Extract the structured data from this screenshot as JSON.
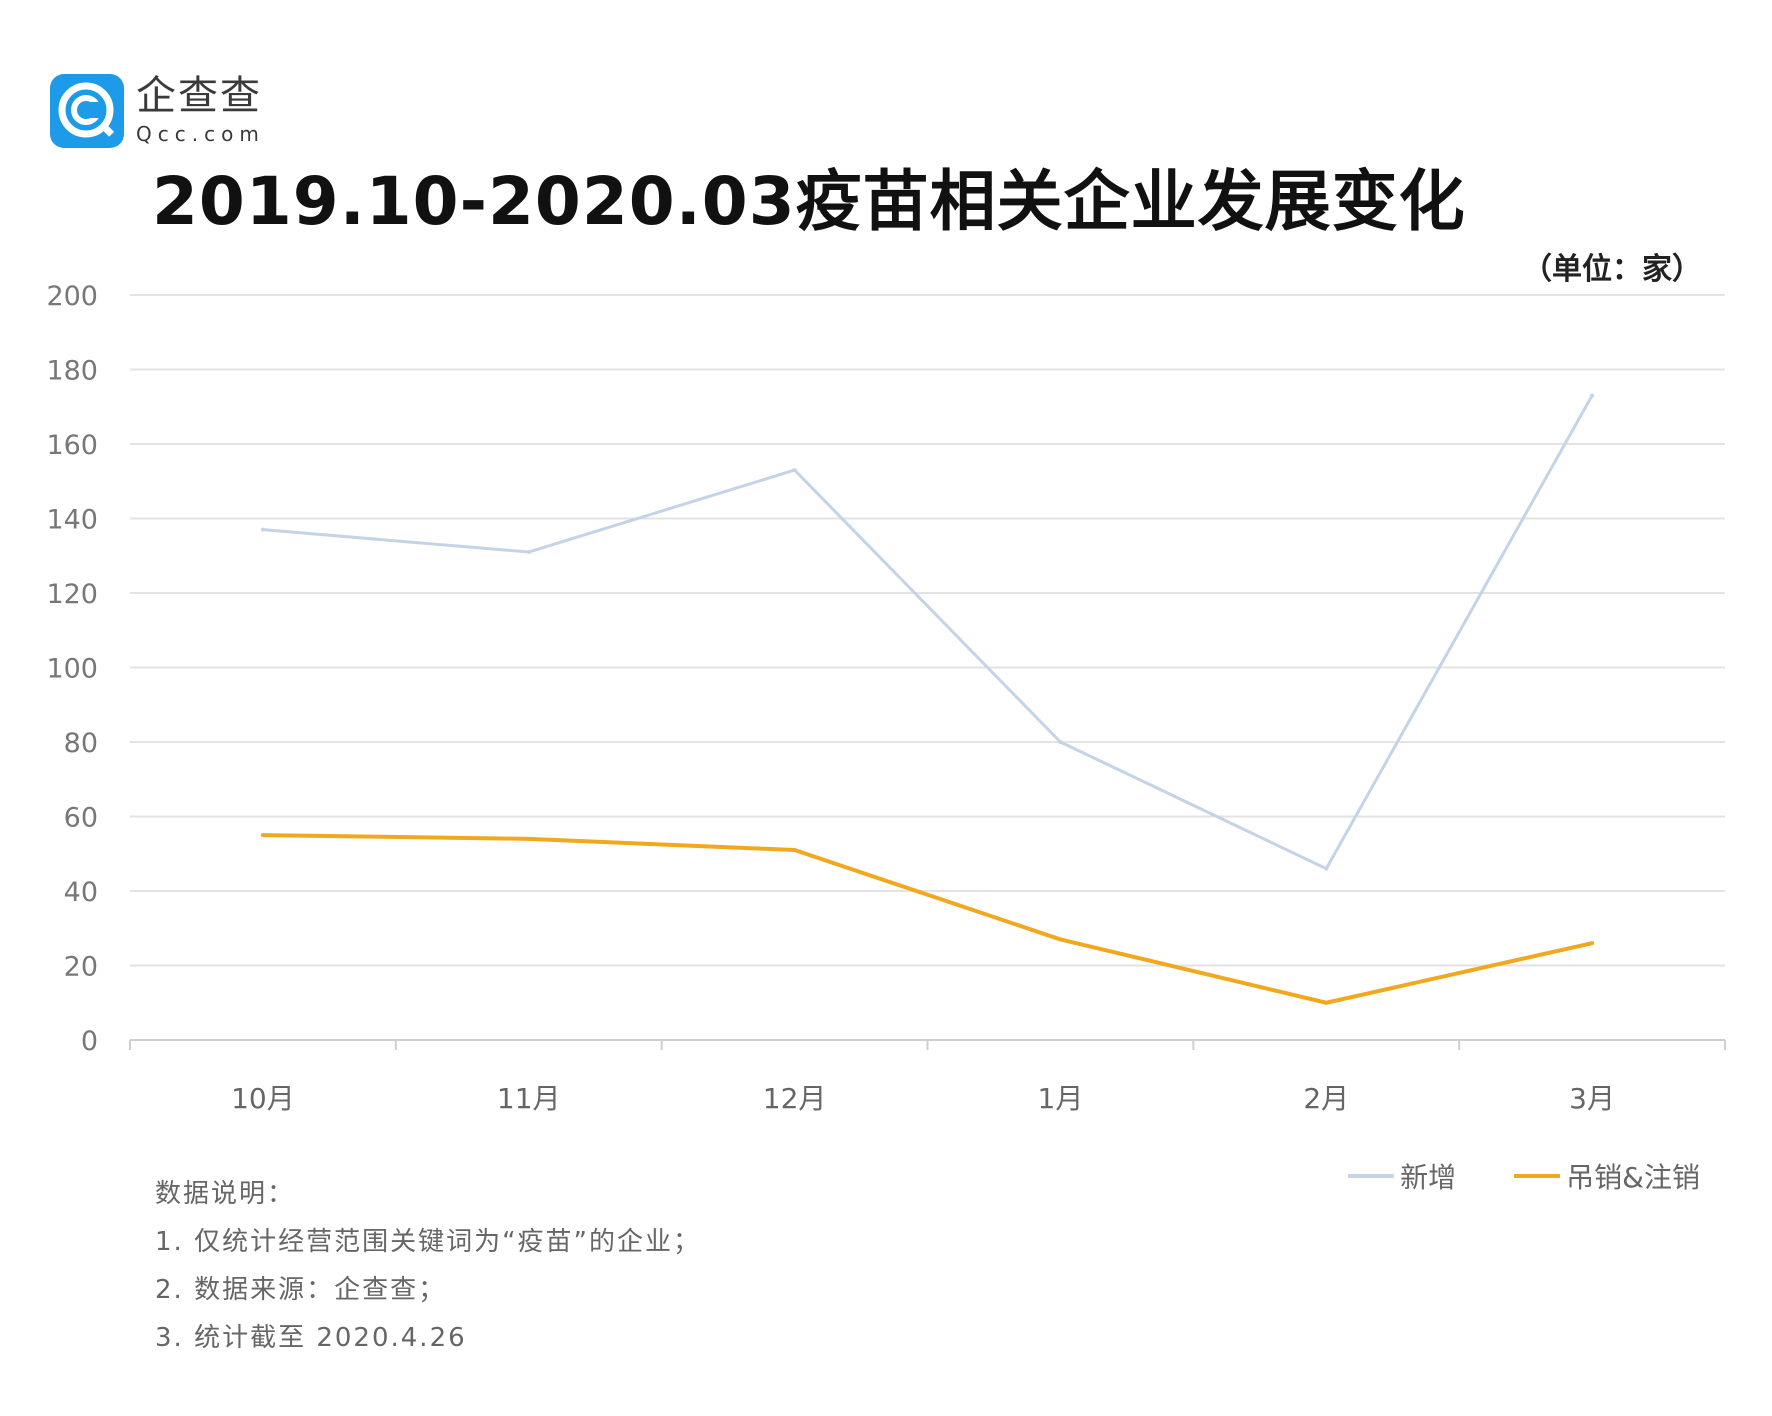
{
  "brand": {
    "name": "企查查",
    "domain": "Qcc.com"
  },
  "title": "2019.10-2020.03疫苗相关企业发展变化",
  "unit": "（单位：家）",
  "chart_data": {
    "type": "line",
    "title": "2019.10-2020.03疫苗相关企业发展变化",
    "unit": "（单位：家）",
    "categories": [
      "10月",
      "11月",
      "12月",
      "1月",
      "2月",
      "3月"
    ],
    "ylim": [
      0,
      200
    ],
    "yticks": [
      0,
      20,
      40,
      60,
      80,
      100,
      120,
      140,
      160,
      180,
      200
    ],
    "grid": true,
    "legend_position": "bottom-right",
    "series": [
      {
        "name": "新增",
        "color": "#c5d3e6",
        "values": [
          137,
          131,
          153,
          80,
          46,
          173
        ]
      },
      {
        "name": "吊销&注销",
        "color": "#f0a81e",
        "values": [
          55,
          54,
          51,
          27,
          10,
          26
        ]
      }
    ]
  },
  "notes": {
    "heading": "数据说明：",
    "lines": [
      "1. 仅统计经营范围关键词为“疫苗”的企业；",
      "2. 数据来源：企查查；",
      "3. 统计截至 2020.4.26"
    ]
  },
  "legend": {
    "items": [
      {
        "label": "新增",
        "color": "#c5d3e6"
      },
      {
        "label": "吊销&注销",
        "color": "#f0a81e"
      }
    ]
  }
}
